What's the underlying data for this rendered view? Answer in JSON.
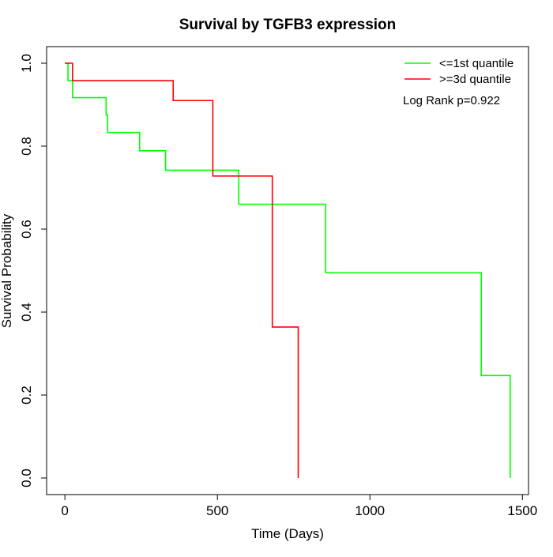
{
  "chart_data": {
    "type": "line",
    "title": "Survival by TGFB3 expression",
    "xlabel": "Time (Days)",
    "ylabel": "Survival Probability",
    "xlim": [
      -60,
      1520
    ],
    "ylim": [
      -0.04,
      1.04
    ],
    "x_ticks": [
      0,
      500,
      1000,
      1500
    ],
    "x_tick_labels": [
      "0",
      "500",
      "1000",
      "1500"
    ],
    "y_ticks": [
      0.0,
      0.2,
      0.4,
      0.6,
      0.8,
      1.0
    ],
    "y_tick_labels": [
      "0.0",
      "0.2",
      "0.4",
      "0.6",
      "0.8",
      "1.0"
    ],
    "grid": false,
    "legend_position": "top-right",
    "annotation": "Log Rank p=0.922",
    "series": [
      {
        "name": "<=1st quantile",
        "color": "#00ff00",
        "step": true,
        "x": [
          0,
          10,
          25,
          135,
          140,
          245,
          330,
          570,
          855,
          1365,
          1460
        ],
        "y": [
          1.0,
          0.958,
          0.917,
          0.875,
          0.833,
          0.789,
          0.742,
          0.66,
          0.495,
          0.247,
          0.0
        ]
      },
      {
        "name": ">=3d quantile",
        "color": "#ff0000",
        "step": true,
        "x": [
          0,
          25,
          355,
          485,
          680,
          765
        ],
        "y": [
          1.0,
          0.958,
          0.91,
          0.728,
          0.364,
          0.0
        ]
      }
    ]
  }
}
